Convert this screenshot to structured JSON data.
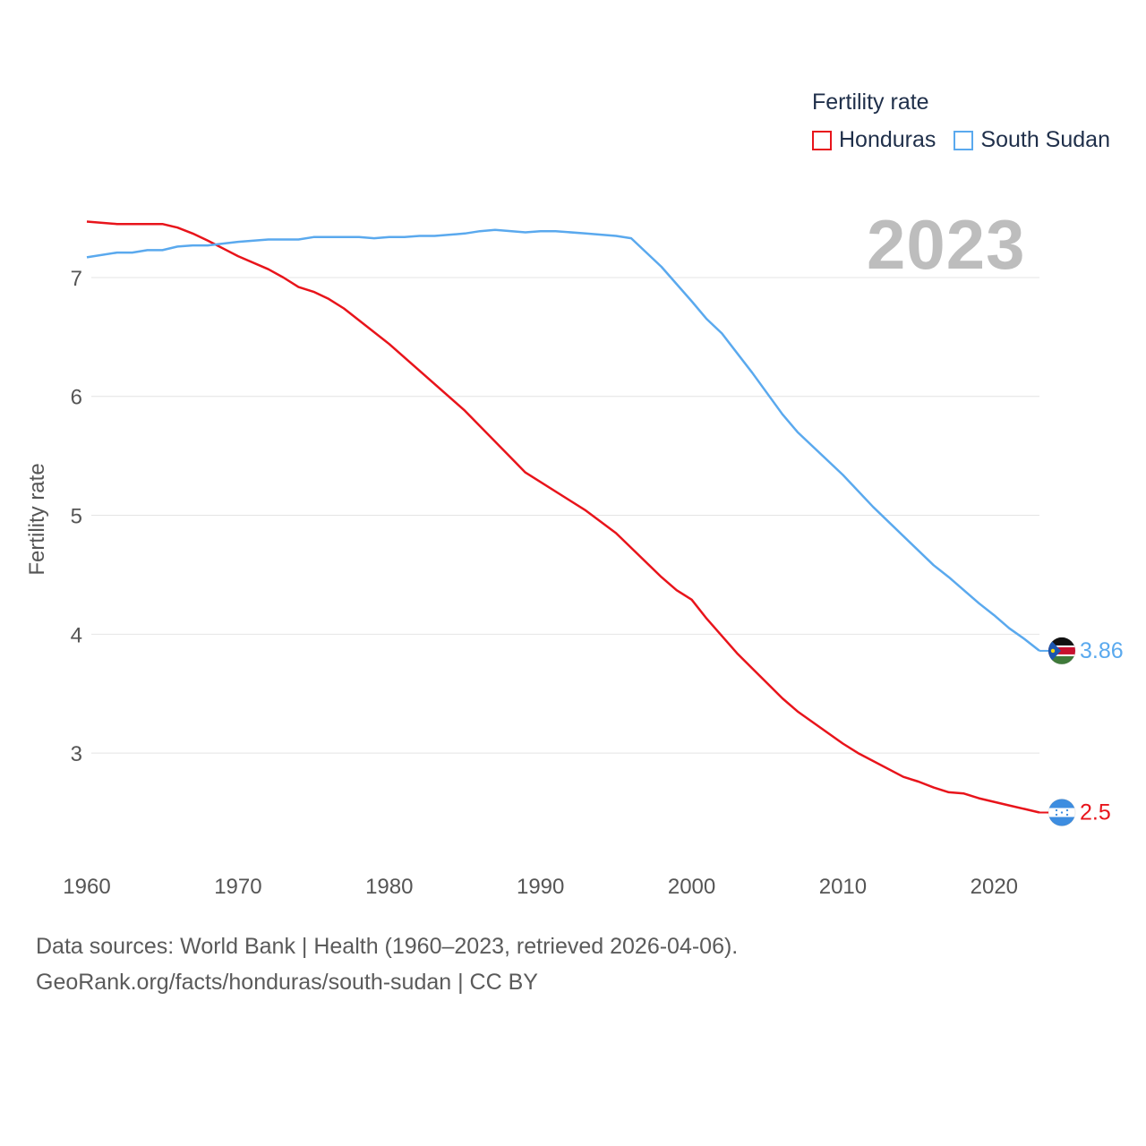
{
  "chart_data": {
    "type": "line",
    "title": "Fertility rate",
    "watermark_year": "2023",
    "xlabel": "",
    "ylabel": "Fertility rate",
    "xlim": [
      1960,
      2023
    ],
    "ylim": [
      2.15,
      7.7
    ],
    "x_ticks": [
      1960,
      1970,
      1980,
      1990,
      2000,
      2010,
      2020
    ],
    "y_ticks": [
      3,
      4,
      5,
      6,
      7
    ],
    "grid": true,
    "legend_position": "top-right",
    "series": [
      {
        "name": "Honduras",
        "color": "#e8141b",
        "end_label": "2.5",
        "flag_icon": "honduras-flag-icon",
        "points": [
          [
            1960,
            7.47
          ],
          [
            1962,
            7.45
          ],
          [
            1965,
            7.45
          ],
          [
            1966,
            7.42
          ],
          [
            1967,
            7.37
          ],
          [
            1968,
            7.31
          ],
          [
            1970,
            7.18
          ],
          [
            1972,
            7.07
          ],
          [
            1973,
            7.0
          ],
          [
            1974,
            6.92
          ],
          [
            1975,
            6.88
          ],
          [
            1976,
            6.82
          ],
          [
            1977,
            6.74
          ],
          [
            1980,
            6.44
          ],
          [
            1985,
            5.88
          ],
          [
            1989,
            5.36
          ],
          [
            1993,
            5.04
          ],
          [
            1995,
            4.85
          ],
          [
            1998,
            4.48
          ],
          [
            1999,
            4.37
          ],
          [
            2000,
            4.29
          ],
          [
            2001,
            4.13
          ],
          [
            2003,
            3.84
          ],
          [
            2006,
            3.46
          ],
          [
            2007,
            3.35
          ],
          [
            2010,
            3.08
          ],
          [
            2011,
            3.0
          ],
          [
            2014,
            2.8
          ],
          [
            2015,
            2.76
          ],
          [
            2016,
            2.71
          ],
          [
            2017,
            2.67
          ],
          [
            2018,
            2.66
          ],
          [
            2019,
            2.62
          ],
          [
            2020,
            2.59
          ],
          [
            2021,
            2.56
          ],
          [
            2022,
            2.53
          ],
          [
            2023,
            2.5
          ]
        ]
      },
      {
        "name": "South Sudan",
        "color": "#5aa9ee",
        "end_label": "3.86",
        "flag_icon": "south-sudan-flag-icon",
        "points": [
          [
            1960,
            7.17
          ],
          [
            1962,
            7.21
          ],
          [
            1963,
            7.21
          ],
          [
            1964,
            7.23
          ],
          [
            1965,
            7.23
          ],
          [
            1966,
            7.26
          ],
          [
            1967,
            7.27
          ],
          [
            1968,
            7.27
          ],
          [
            1970,
            7.3
          ],
          [
            1972,
            7.32
          ],
          [
            1974,
            7.32
          ],
          [
            1975,
            7.34
          ],
          [
            1978,
            7.34
          ],
          [
            1979,
            7.33
          ],
          [
            1980,
            7.34
          ],
          [
            1981,
            7.34
          ],
          [
            1982,
            7.35
          ],
          [
            1983,
            7.35
          ],
          [
            1985,
            7.37
          ],
          [
            1986,
            7.39
          ],
          [
            1987,
            7.4
          ],
          [
            1989,
            7.38
          ],
          [
            1990,
            7.39
          ],
          [
            1991,
            7.39
          ],
          [
            1993,
            7.37
          ],
          [
            1995,
            7.35
          ],
          [
            1996,
            7.33
          ],
          [
            1998,
            7.09
          ],
          [
            2000,
            6.8
          ],
          [
            2001,
            6.65
          ],
          [
            2002,
            6.53
          ],
          [
            2004,
            6.2
          ],
          [
            2006,
            5.85
          ],
          [
            2007,
            5.7
          ],
          [
            2010,
            5.34
          ],
          [
            2012,
            5.07
          ],
          [
            2016,
            4.58
          ],
          [
            2017,
            4.48
          ],
          [
            2019,
            4.26
          ],
          [
            2020,
            4.16
          ],
          [
            2021,
            4.05
          ],
          [
            2022,
            3.96
          ],
          [
            2023,
            3.86
          ]
        ]
      }
    ]
  },
  "legend": {
    "title": "Fertility rate",
    "items": [
      {
        "label": "Honduras",
        "color": "#e8141b"
      },
      {
        "label": "South Sudan",
        "color": "#5aa9ee"
      }
    ]
  },
  "footer": {
    "line1": "Data sources: World Bank | Health (1960–2023, retrieved 2026-04-06).",
    "line2": "GeoRank.org/facts/honduras/south-sudan | CC BY"
  }
}
